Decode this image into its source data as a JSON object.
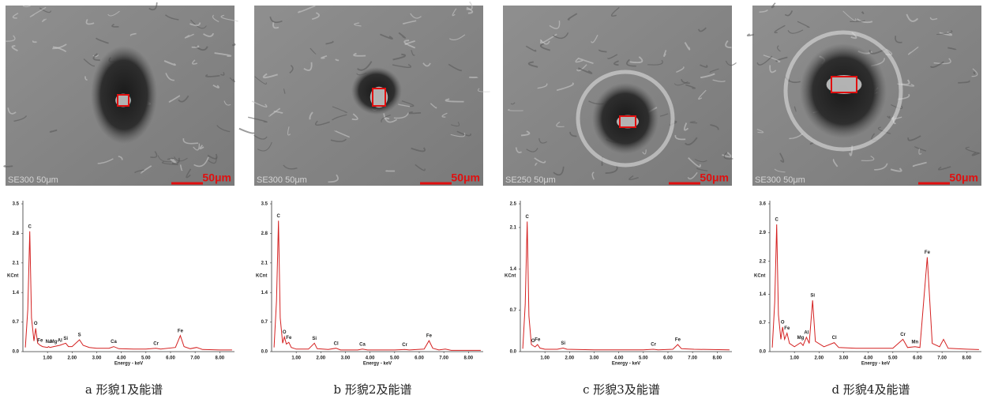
{
  "chart_data": [
    {
      "type": "line",
      "caption": "a 形貌1及能谱",
      "micrograph": {
        "info": "SE300  50μm",
        "scale": "50μm"
      },
      "ylabel": "KCnt",
      "xlabel": "Energy - keV",
      "color": "#d42020",
      "x": [
        0.1,
        0.2,
        0.28,
        0.35,
        0.45,
        0.52,
        0.6,
        0.7,
        0.8,
        1.0,
        1.04,
        1.1,
        1.25,
        1.5,
        1.74,
        1.85,
        2.0,
        2.3,
        2.45,
        2.7,
        3.0,
        3.5,
        3.69,
        3.9,
        4.5,
        5.0,
        5.41,
        5.6,
        6.2,
        6.4,
        6.55,
        6.8,
        7.06,
        7.3,
        8.0,
        8.5
      ],
      "values": [
        0.1,
        1.0,
        2.85,
        0.8,
        0.25,
        0.55,
        0.2,
        0.15,
        0.12,
        0.1,
        0.12,
        0.1,
        0.12,
        0.15,
        0.2,
        0.12,
        0.12,
        0.28,
        0.15,
        0.1,
        0.08,
        0.08,
        0.12,
        0.07,
        0.06,
        0.06,
        0.08,
        0.06,
        0.1,
        0.38,
        0.12,
        0.07,
        0.1,
        0.05,
        0.04,
        0.04
      ],
      "annotations": [
        {
          "text": "C",
          "x": 0.28
        },
        {
          "text": "O",
          "x": 0.52
        },
        {
          "text": "Fe",
          "x": 0.7
        },
        {
          "text": "Na",
          "x": 1.04
        },
        {
          "text": "Mg",
          "x": 1.25
        },
        {
          "text": "Al",
          "x": 1.5
        },
        {
          "text": "Si",
          "x": 1.74
        },
        {
          "text": "S",
          "x": 2.3
        },
        {
          "text": "Ca",
          "x": 3.69
        },
        {
          "text": "Cr",
          "x": 5.41
        },
        {
          "text": "Fe",
          "x": 6.4
        }
      ],
      "xlim": [
        0,
        8.6
      ],
      "xticks": [
        {
          "value": 1,
          "label": "1.00"
        },
        {
          "value": 2,
          "label": "2.00"
        },
        {
          "value": 3,
          "label": "3.00"
        },
        {
          "value": 4,
          "label": "4.00"
        },
        {
          "value": 5,
          "label": "5.00"
        },
        {
          "value": 6,
          "label": "6.00"
        },
        {
          "value": 7,
          "label": "7.00"
        },
        {
          "value": 8,
          "label": "8.00"
        }
      ],
      "ylim": [
        0,
        3.5
      ],
      "yticks": [
        {
          "value": 0,
          "label": "0.0"
        },
        0.7,
        1.4,
        2.1,
        2.8,
        3.5
      ]
    },
    {
      "type": "line",
      "caption": "b 形貌2及能谱",
      "micrograph": {
        "info": "SE300  50μm",
        "scale": "50μm"
      },
      "ylabel": "KCnt",
      "xlabel": "Energy - keV",
      "color": "#d42020",
      "x": [
        0.1,
        0.2,
        0.28,
        0.35,
        0.45,
        0.52,
        0.6,
        0.7,
        0.8,
        1.0,
        1.5,
        1.74,
        1.85,
        2.3,
        2.62,
        2.8,
        3.5,
        3.69,
        3.9,
        5.0,
        5.41,
        5.6,
        6.2,
        6.4,
        6.55,
        6.8,
        7.06,
        7.3,
        8.5
      ],
      "values": [
        0.1,
        1.2,
        3.1,
        0.8,
        0.2,
        0.35,
        0.18,
        0.22,
        0.1,
        0.06,
        0.06,
        0.2,
        0.07,
        0.05,
        0.08,
        0.04,
        0.04,
        0.06,
        0.04,
        0.04,
        0.05,
        0.04,
        0.06,
        0.26,
        0.08,
        0.04,
        0.06,
        0.03,
        0.03
      ],
      "annotations": [
        {
          "text": "C",
          "x": 0.28
        },
        {
          "text": "O",
          "x": 0.52
        },
        {
          "text": "Fe",
          "x": 0.7
        },
        {
          "text": "Si",
          "x": 1.74
        },
        {
          "text": "Cl",
          "x": 2.62
        },
        {
          "text": "Ca",
          "x": 3.69
        },
        {
          "text": "Cr",
          "x": 5.41
        },
        {
          "text": "Fe",
          "x": 6.4
        }
      ],
      "xlim": [
        0,
        8.6
      ],
      "xticks": [
        {
          "value": 1,
          "label": "1.00"
        },
        {
          "value": 2,
          "label": "2.00"
        },
        {
          "value": 3,
          "label": "3.00"
        },
        {
          "value": 4,
          "label": "4.00"
        },
        {
          "value": 5,
          "label": "5.00"
        },
        {
          "value": 6,
          "label": "6.00"
        },
        {
          "value": 7,
          "label": "7.00"
        },
        {
          "value": 8,
          "label": "8.00"
        }
      ],
      "ylim": [
        0,
        3.5
      ],
      "yticks": [
        {
          "value": 0,
          "label": "0.0"
        },
        0.7,
        1.4,
        2.1,
        2.8,
        3.5
      ]
    },
    {
      "type": "line",
      "caption": "c 形貌3及能谱",
      "micrograph": {
        "info": "SE250  50μm",
        "scale": "50μm"
      },
      "ylabel": "KCnt",
      "xlabel": "Energy - keV",
      "color": "#d42020",
      "x": [
        0.1,
        0.2,
        0.28,
        0.35,
        0.45,
        0.52,
        0.6,
        0.7,
        0.8,
        1.0,
        1.5,
        1.74,
        1.9,
        3.0,
        5.0,
        5.41,
        5.6,
        6.2,
        6.4,
        6.55,
        7.06,
        8.5
      ],
      "values": [
        0.05,
        0.8,
        2.2,
        0.6,
        0.12,
        0.1,
        0.08,
        0.12,
        0.06,
        0.04,
        0.04,
        0.06,
        0.04,
        0.03,
        0.03,
        0.04,
        0.03,
        0.04,
        0.12,
        0.05,
        0.04,
        0.03
      ],
      "annotations": [
        {
          "text": "C",
          "x": 0.28
        },
        {
          "text": "O",
          "x": 0.52
        },
        {
          "text": "Fe",
          "x": 0.7
        },
        {
          "text": "Si",
          "x": 1.74
        },
        {
          "text": "Cr",
          "x": 5.41
        },
        {
          "text": "Fe",
          "x": 6.4
        }
      ],
      "xlim": [
        0,
        8.6
      ],
      "xticks": [
        {
          "value": 1,
          "label": "1.00"
        },
        {
          "value": 2,
          "label": "2.00"
        },
        {
          "value": 3,
          "label": "3.00"
        },
        {
          "value": 4,
          "label": "4.00"
        },
        {
          "value": 5,
          "label": "5.00"
        },
        {
          "value": 6,
          "label": "6.00"
        },
        {
          "value": 7,
          "label": "7.00"
        },
        {
          "value": 8,
          "label": "8.00"
        }
      ],
      "ylim": [
        0,
        2.5
      ],
      "yticks": [
        {
          "value": 0,
          "label": "0.0"
        },
        0.7,
        1.4,
        2.1,
        2.5
      ]
    },
    {
      "type": "line",
      "caption": "d 形貌4及能谱",
      "micrograph": {
        "info": "SE300  50μm",
        "scale": "50μm"
      },
      "ylabel": "KCnt",
      "xlabel": "Energy - keV",
      "color": "#d42020",
      "x": [
        0.1,
        0.2,
        0.28,
        0.35,
        0.45,
        0.52,
        0.6,
        0.7,
        0.8,
        1.0,
        1.25,
        1.35,
        1.49,
        1.6,
        1.74,
        1.85,
        2.2,
        2.62,
        2.8,
        3.5,
        5.0,
        5.41,
        5.6,
        5.9,
        6.1,
        6.4,
        6.6,
        6.9,
        7.06,
        7.25,
        8.0,
        8.5
      ],
      "values": [
        0.1,
        1.2,
        3.1,
        0.9,
        0.3,
        0.6,
        0.3,
        0.45,
        0.2,
        0.12,
        0.22,
        0.15,
        0.35,
        0.2,
        1.25,
        0.25,
        0.12,
        0.22,
        0.1,
        0.08,
        0.08,
        0.3,
        0.1,
        0.12,
        0.1,
        2.3,
        0.2,
        0.12,
        0.3,
        0.08,
        0.06,
        0.05
      ],
      "annotations": [
        {
          "text": "C",
          "x": 0.28
        },
        {
          "text": "O",
          "x": 0.52
        },
        {
          "text": "Fe",
          "x": 0.7
        },
        {
          "text": "Mg",
          "x": 1.25
        },
        {
          "text": "Al",
          "x": 1.49
        },
        {
          "text": "Si",
          "x": 1.74
        },
        {
          "text": "Cl",
          "x": 2.62
        },
        {
          "text": "Cr",
          "x": 5.41
        },
        {
          "text": "Mn",
          "x": 5.9
        },
        {
          "text": "Fe",
          "x": 6.4
        }
      ],
      "xlim": [
        0,
        8.6
      ],
      "xticks": [
        {
          "value": 1,
          "label": "1.00"
        },
        {
          "value": 2,
          "label": "2.00"
        },
        {
          "value": 3,
          "label": "3.00"
        },
        {
          "value": 4,
          "label": "4.00"
        },
        {
          "value": 5,
          "label": "5.00"
        },
        {
          "value": 6,
          "label": "6.00"
        },
        {
          "value": 7,
          "label": "7.00"
        },
        {
          "value": 8,
          "label": "8.00"
        }
      ],
      "ylim": [
        0,
        3.6
      ],
      "yticks": [
        {
          "value": 0,
          "label": "0.0"
        },
        0.7,
        1.4,
        2.2,
        2.9,
        3.6
      ]
    }
  ]
}
